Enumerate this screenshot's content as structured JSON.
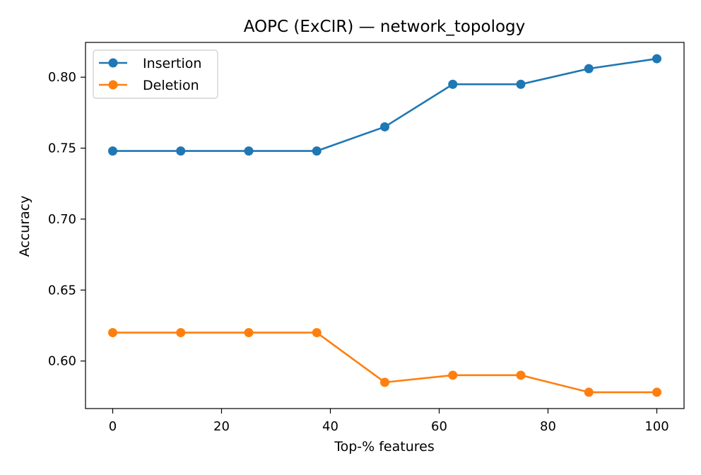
{
  "chart_data": {
    "type": "line",
    "title": "AOPC (ExCIR) — network_topology",
    "xlabel": "Top-% features",
    "ylabel": "Accuracy",
    "x": [
      0,
      12.5,
      25,
      37.5,
      50,
      62.5,
      75,
      87.5,
      100
    ],
    "xlim": [
      -5,
      105
    ],
    "ylim": [
      0.5665,
      0.8245
    ],
    "xticks": [
      0,
      20,
      40,
      60,
      80,
      100
    ],
    "yticks": [
      0.6,
      0.65,
      0.7,
      0.75,
      0.8
    ],
    "xtick_labels": [
      "0",
      "20",
      "40",
      "60",
      "80",
      "100"
    ],
    "ytick_labels": [
      "0.60",
      "0.65",
      "0.70",
      "0.75",
      "0.80"
    ],
    "grid": false,
    "legend_position": "top-left",
    "series": [
      {
        "name": "Insertion",
        "color": "#1f77b4",
        "values": [
          0.748,
          0.748,
          0.748,
          0.748,
          0.765,
          0.795,
          0.795,
          0.806,
          0.813
        ]
      },
      {
        "name": "Deletion",
        "color": "#ff7f0e",
        "values": [
          0.62,
          0.62,
          0.62,
          0.62,
          0.585,
          0.59,
          0.59,
          0.578,
          0.578
        ]
      }
    ]
  }
}
